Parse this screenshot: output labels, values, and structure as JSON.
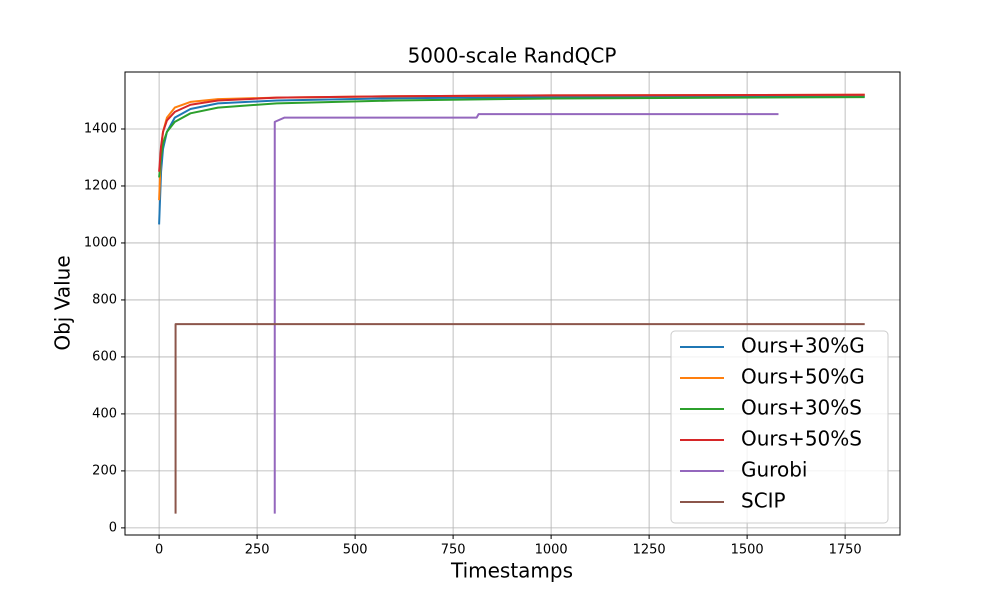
{
  "chart_data": {
    "type": "line",
    "title": "5000-scale RandQCP",
    "xlabel": "Timestamps",
    "ylabel": "Obj Value",
    "xlim": [
      -87,
      1890
    ],
    "ylim": [
      -25,
      1600
    ],
    "xticks": [
      0,
      250,
      500,
      750,
      1000,
      1250,
      1500,
      1750
    ],
    "yticks": [
      0,
      200,
      400,
      600,
      800,
      1000,
      1200,
      1400
    ],
    "grid": true,
    "legend": "lower right",
    "series": [
      {
        "name": "Ours+30%G",
        "color": "#1f77b4",
        "x": [
          0,
          5,
          10,
          20,
          40,
          80,
          150,
          300,
          600,
          1000,
          1800
        ],
        "values": [
          1065,
          1250,
          1330,
          1390,
          1440,
          1470,
          1490,
          1500,
          1508,
          1512,
          1515
        ]
      },
      {
        "name": "Ours+50%G",
        "color": "#ff7f0e",
        "x": [
          0,
          5,
          10,
          20,
          40,
          80,
          150,
          300,
          600,
          1000,
          1800
        ],
        "values": [
          1150,
          1330,
          1390,
          1440,
          1475,
          1495,
          1505,
          1510,
          1515,
          1518,
          1520
        ]
      },
      {
        "name": "Ours+30%S",
        "color": "#2ca02c",
        "x": [
          0,
          5,
          10,
          20,
          40,
          80,
          150,
          300,
          600,
          1000,
          1800
        ],
        "values": [
          1230,
          1300,
          1350,
          1390,
          1425,
          1455,
          1475,
          1490,
          1500,
          1507,
          1512
        ]
      },
      {
        "name": "Ours+50%S",
        "color": "#d62728",
        "x": [
          0,
          5,
          10,
          20,
          40,
          80,
          150,
          300,
          600,
          1000,
          1800
        ],
        "values": [
          1250,
          1340,
          1390,
          1430,
          1460,
          1485,
          1500,
          1510,
          1515,
          1518,
          1520
        ]
      },
      {
        "name": "Gurobi",
        "color": "#9467bd",
        "x": [
          295,
          295,
          320,
          810,
          815,
          1580
        ],
        "values": [
          50,
          1425,
          1440,
          1440,
          1452,
          1452
        ]
      },
      {
        "name": "SCIP",
        "color": "#8c564b",
        "x": [
          42,
          42,
          1800
        ],
        "values": [
          50,
          715,
          715
        ]
      }
    ]
  }
}
